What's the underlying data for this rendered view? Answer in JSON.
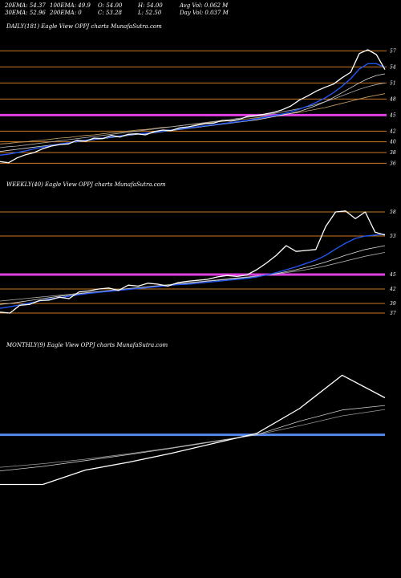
{
  "header": {
    "ema20": "20EMA: 54.37",
    "ema100": "100EMA: 49.9",
    "open": "O: 54.00",
    "high": "H: 54.00",
    "avg_vol": "Avg Vol: 0.062  M",
    "ema30": "30EMA: 52.96",
    "ema200": "200EMA: 0",
    "close": "C: 53.28",
    "low": "L: 52.50",
    "day_vol": "Day Vol: 0.037 M"
  },
  "chart_data": [
    {
      "type": "line",
      "panel_label": "DAILY(181) Eagle   View  OPPJ charts MunafaSutra.com",
      "ylim": [
        35,
        59
      ],
      "x": [
        0,
        4,
        8,
        12,
        16,
        20,
        24,
        28,
        32,
        36,
        40,
        44,
        48,
        52,
        56,
        60,
        64,
        68,
        72,
        76,
        80,
        84,
        88,
        92,
        96,
        100,
        104,
        108,
        112,
        116,
        120,
        124,
        128,
        132,
        136,
        140,
        144,
        148,
        152,
        156,
        160,
        164,
        168,
        172,
        176,
        180
      ],
      "series": [
        {
          "values": [
            36.3,
            36.1,
            37.0,
            37.6,
            38.0,
            38.7,
            39.2,
            39.5,
            39.6,
            40.3,
            40.1,
            40.7,
            40.6,
            41.2,
            40.9,
            41.4,
            41.5,
            41.3,
            41.9,
            42.2,
            42.1,
            42.6,
            42.8,
            43.1,
            43.4,
            43.5,
            44.0,
            43.9,
            44.2,
            44.8,
            44.9,
            45.2,
            45.5,
            46.0,
            46.7,
            47.8,
            48.6,
            49.5,
            50.2,
            50.8,
            52.0,
            53.0,
            56.5,
            57.2,
            56.3,
            53.5
          ],
          "color": "#ffffff"
        },
        {
          "values": [
            37.5,
            37.7,
            38.0,
            38.3,
            38.7,
            39.0,
            39.3,
            39.6,
            39.8,
            40.1,
            40.3,
            40.5,
            40.7,
            40.9,
            41.1,
            41.3,
            41.5,
            41.6,
            41.8,
            42.0,
            42.2,
            42.4,
            42.6,
            42.8,
            43.0,
            43.2,
            43.4,
            43.6,
            43.8,
            44.0,
            44.3,
            44.6,
            44.9,
            45.2,
            45.6,
            46.1,
            46.7,
            47.4,
            48.2,
            49.2,
            50.4,
            51.8,
            53.6,
            54.6,
            54.6,
            53.9
          ],
          "color": "#2255ee"
        },
        {
          "values": [
            38.2,
            38.4,
            38.6,
            38.8,
            39.0,
            39.2,
            39.4,
            39.6,
            39.8,
            40.0,
            40.2,
            40.4,
            40.6,
            40.8,
            41.0,
            41.2,
            41.4,
            41.5,
            41.7,
            41.9,
            42.1,
            42.3,
            42.5,
            42.7,
            42.9,
            43.1,
            43.3,
            43.5,
            43.7,
            43.9,
            44.1,
            44.4,
            44.7,
            45.0,
            45.3,
            45.7,
            46.2,
            46.8,
            47.5,
            48.3,
            49.2,
            50.1,
            51.0,
            51.8,
            52.4,
            52.7
          ],
          "color": "#dddddd"
        },
        {
          "values": [
            38.9,
            39.1,
            39.2,
            39.4,
            39.6,
            39.8,
            40.0,
            40.2,
            40.4,
            40.6,
            40.8,
            41.0,
            41.2,
            41.4,
            41.6,
            41.8,
            42.0,
            42.2,
            42.4,
            42.6,
            42.8,
            43.0,
            43.2,
            43.4,
            43.6,
            43.8,
            44.0,
            44.2,
            44.4,
            44.6,
            44.8,
            45.0,
            45.3,
            45.6,
            45.9,
            46.2,
            46.6,
            47.0,
            47.5,
            48.0,
            48.6,
            49.2,
            49.8,
            50.3,
            50.7,
            51.0
          ],
          "color": "#aaaaaa"
        },
        {
          "values": [
            39.6,
            39.7,
            39.9,
            40.0,
            40.2,
            40.3,
            40.5,
            40.7,
            40.8,
            41.0,
            41.2,
            41.3,
            41.5,
            41.7,
            41.8,
            42.0,
            42.2,
            42.3,
            42.5,
            42.7,
            42.8,
            43.0,
            43.2,
            43.3,
            43.5,
            43.7,
            43.8,
            44.0,
            44.2,
            44.3,
            44.5,
            44.7,
            44.9,
            45.1,
            45.3,
            45.5,
            45.8,
            46.1,
            46.4,
            46.8,
            47.2,
            47.6,
            48.0,
            48.4,
            48.7,
            49.0
          ],
          "color": "#c8a060"
        }
      ],
      "hlines": [
        {
          "y": 57,
          "color": "#cc7a22"
        },
        {
          "y": 54,
          "color": "#cc7a22"
        },
        {
          "y": 51,
          "color": "#cc7a22"
        },
        {
          "y": 48,
          "color": "#cc7a22"
        },
        {
          "y": 45,
          "color": "#e040e0"
        },
        {
          "y": 42,
          "color": "#cc7a22"
        },
        {
          "y": 40,
          "color": "#cc7a22"
        },
        {
          "y": 38,
          "color": "#cc7a22"
        },
        {
          "y": 36,
          "color": "#cc7a22"
        }
      ],
      "tick_labels": [
        "57",
        "54",
        "51",
        "48",
        "45",
        "42",
        "40",
        "38",
        "36"
      ]
    },
    {
      "type": "line",
      "panel_label": "WEEKLY(40) Eagle   View  OPPJ charts MunafaSutra.com",
      "ylim": [
        35,
        61
      ],
      "x": [
        0,
        1,
        2,
        3,
        4,
        5,
        6,
        7,
        8,
        9,
        10,
        11,
        12,
        13,
        14,
        15,
        16,
        17,
        18,
        19,
        20,
        21,
        22,
        23,
        24,
        25,
        26,
        27,
        28,
        29,
        30,
        31,
        32,
        33,
        34,
        35,
        36,
        37,
        38,
        39
      ],
      "series": [
        {
          "values": [
            37.2,
            37.0,
            38.6,
            38.8,
            39.6,
            39.7,
            40.3,
            40.0,
            41.4,
            41.6,
            42.0,
            42.2,
            41.7,
            42.8,
            42.6,
            43.2,
            43.0,
            42.6,
            43.3,
            43.6,
            43.8,
            44.0,
            44.5,
            44.8,
            44.6,
            44.9,
            46.0,
            47.4,
            49.0,
            51.0,
            49.8,
            50.0,
            50.2,
            55.0,
            58.0,
            58.2,
            56.6,
            58.0,
            53.8,
            53.2
          ],
          "color": "#ffffff"
        },
        {
          "values": [
            38.0,
            38.3,
            38.7,
            39.1,
            39.5,
            39.9,
            40.2,
            40.5,
            40.8,
            41.1,
            41.3,
            41.5,
            41.7,
            41.9,
            42.1,
            42.3,
            42.5,
            42.7,
            42.9,
            43.0,
            43.2,
            43.4,
            43.6,
            43.8,
            44.0,
            44.2,
            44.5,
            44.9,
            45.4,
            46.0,
            46.6,
            47.3,
            48.0,
            49.0,
            50.3,
            51.5,
            52.5,
            53.0,
            53.2,
            53.4
          ],
          "color": "#2255ee"
        },
        {
          "values": [
            38.8,
            39.0,
            39.3,
            39.6,
            39.9,
            40.2,
            40.5,
            40.7,
            41.0,
            41.2,
            41.4,
            41.6,
            41.8,
            42.0,
            42.2,
            42.4,
            42.6,
            42.8,
            43.0,
            43.2,
            43.4,
            43.6,
            43.8,
            44.0,
            44.2,
            44.4,
            44.6,
            44.9,
            45.2,
            45.6,
            46.0,
            46.5,
            47.0,
            47.6,
            48.3,
            49.0,
            49.6,
            50.2,
            50.6,
            51.0
          ],
          "color": "#dddddd"
        },
        {
          "values": [
            39.5,
            39.7,
            39.9,
            40.1,
            40.3,
            40.5,
            40.7,
            40.9,
            41.1,
            41.3,
            41.5,
            41.7,
            41.9,
            42.1,
            42.3,
            42.5,
            42.7,
            42.9,
            43.1,
            43.3,
            43.5,
            43.7,
            43.9,
            44.1,
            44.3,
            44.5,
            44.7,
            44.9,
            45.1,
            45.4,
            45.7,
            46.0,
            46.4,
            46.8,
            47.3,
            47.8,
            48.3,
            48.8,
            49.2,
            49.6
          ],
          "color": "#aaaaaa"
        }
      ],
      "hlines": [
        {
          "y": 58,
          "color": "#cc7a22"
        },
        {
          "y": 53,
          "color": "#cc7a22"
        },
        {
          "y": 45,
          "color": "#e040e0"
        },
        {
          "y": 42,
          "color": "#cc7a22"
        },
        {
          "y": 39,
          "color": "#cc7a22"
        },
        {
          "y": 37,
          "color": "#cc7a22"
        }
      ],
      "tick_labels": [
        "58",
        "53",
        "45",
        "42",
        "39",
        "37"
      ]
    },
    {
      "type": "line",
      "panel_label": "MONTHLY(9) Eagle   View  OPPJ charts MunafaSutra.com",
      "ylim": [
        30,
        62
      ],
      "x": [
        0,
        1,
        2,
        3,
        4,
        5,
        6,
        7,
        8,
        9
      ],
      "series": [
        {
          "values": [
            34.0,
            34.0,
            37.2,
            38.9,
            40.9,
            43.1,
            45.3,
            50.8,
            58.2,
            53.2
          ],
          "color": "#ffffff"
        },
        {
          "values": [
            37.0,
            38.0,
            39.3,
            40.6,
            42.0,
            43.5,
            45.0,
            48.0,
            50.5,
            51.5
          ],
          "color": "#cccccc"
        },
        {
          "values": [
            37.8,
            38.6,
            39.6,
            40.8,
            42.1,
            43.6,
            45.0,
            47.0,
            49.2,
            50.6
          ],
          "color": "#999999"
        }
      ],
      "hlines": [
        {
          "y": 45,
          "color": "#5588ee"
        }
      ],
      "tick_labels": []
    }
  ]
}
